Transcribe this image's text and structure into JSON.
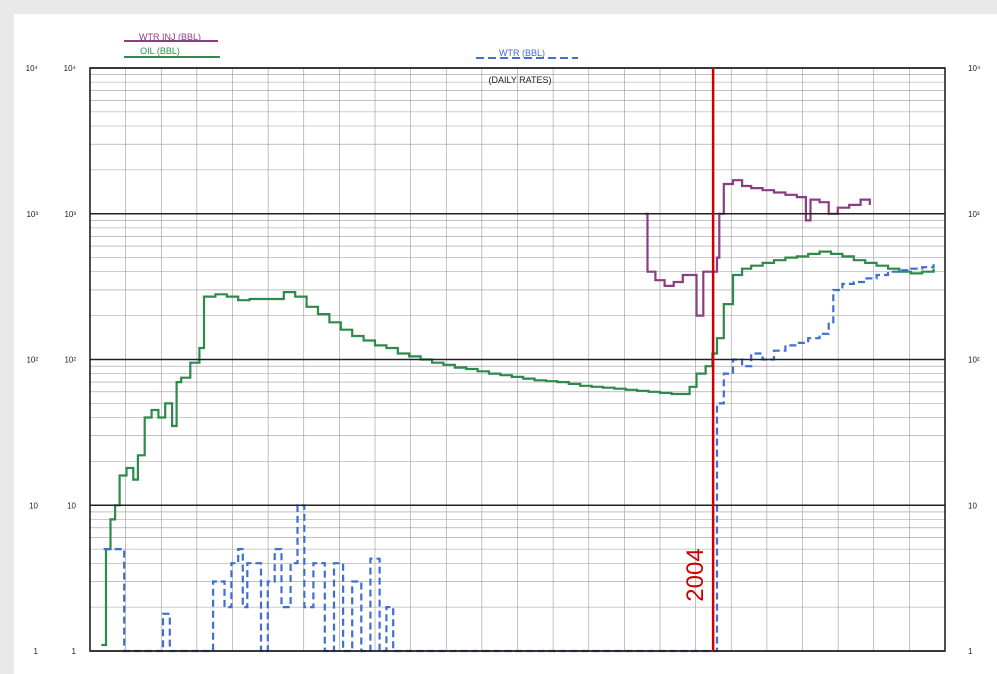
{
  "chart_data": {
    "type": "line",
    "title": "(DAILY RATES)",
    "y_scale": "log",
    "ylim": [
      1,
      10000
    ],
    "y_tick_labels": [
      "1",
      "10",
      "10²",
      "10³",
      "10⁴"
    ],
    "right_tick_labels": [
      "1",
      "10",
      "10²",
      "10³",
      "10⁴"
    ],
    "grid": true,
    "legend": [
      "WTR INJ (BBL)",
      "OIL (BBL)",
      "WTR (BBL)"
    ],
    "annotation": {
      "label": "2004",
      "x": 27.33
    },
    "x_range": [
      0,
      37.5
    ],
    "series": [
      {
        "name": "WTR INJ (BBL)",
        "color": "#8a3d80",
        "style": "solid",
        "points": [
          [
            24.35,
            1000
          ],
          [
            24.45,
            400
          ],
          [
            24.8,
            350
          ],
          [
            25.2,
            320
          ],
          [
            25.6,
            340
          ],
          [
            26.0,
            380
          ],
          [
            26.3,
            380
          ],
          [
            26.6,
            200
          ],
          [
            26.8,
            200
          ],
          [
            26.9,
            400
          ],
          [
            27.0,
            400
          ],
          [
            27.5,
            500
          ],
          [
            27.6,
            1000
          ],
          [
            27.8,
            1600
          ],
          [
            28.2,
            1700
          ],
          [
            28.6,
            1550
          ],
          [
            29.0,
            1500
          ],
          [
            29.5,
            1450
          ],
          [
            30.0,
            1400
          ],
          [
            30.5,
            1350
          ],
          [
            31.0,
            1300
          ],
          [
            31.4,
            900
          ],
          [
            31.6,
            1250
          ],
          [
            32.0,
            1200
          ],
          [
            32.4,
            1000
          ],
          [
            32.8,
            1100
          ],
          [
            33.3,
            1150
          ],
          [
            33.8,
            1250
          ],
          [
            34.2,
            1150
          ]
        ]
      },
      {
        "name": "OIL (BBL)",
        "color": "#2e8a4a",
        "style": "solid",
        "points": [
          [
            0.5,
            1.1
          ],
          [
            0.7,
            5
          ],
          [
            0.9,
            8
          ],
          [
            1.1,
            10
          ],
          [
            1.3,
            16
          ],
          [
            1.6,
            18
          ],
          [
            1.9,
            15
          ],
          [
            2.1,
            22
          ],
          [
            2.4,
            40
          ],
          [
            2.7,
            45
          ],
          [
            3.0,
            40
          ],
          [
            3.3,
            50
          ],
          [
            3.6,
            35
          ],
          [
            3.8,
            70
          ],
          [
            4.0,
            75
          ],
          [
            4.4,
            95
          ],
          [
            4.8,
            120
          ],
          [
            5.0,
            270
          ],
          [
            5.5,
            280
          ],
          [
            6.0,
            270
          ],
          [
            6.5,
            255
          ],
          [
            7.0,
            260
          ],
          [
            8.5,
            290
          ],
          [
            9.0,
            270
          ],
          [
            9.5,
            230
          ],
          [
            10.0,
            205
          ],
          [
            10.5,
            180
          ],
          [
            11.0,
            160
          ],
          [
            11.5,
            145
          ],
          [
            12.0,
            135
          ],
          [
            12.5,
            125
          ],
          [
            13.0,
            120
          ],
          [
            13.5,
            110
          ],
          [
            14.0,
            105
          ],
          [
            14.5,
            100
          ],
          [
            15.0,
            95
          ],
          [
            15.5,
            92
          ],
          [
            16.0,
            88
          ],
          [
            16.5,
            86
          ],
          [
            17.0,
            83
          ],
          [
            17.5,
            80
          ],
          [
            18.0,
            78
          ],
          [
            18.5,
            76
          ],
          [
            19.0,
            74
          ],
          [
            19.5,
            72
          ],
          [
            20.0,
            71
          ],
          [
            20.5,
            70
          ],
          [
            21.0,
            68
          ],
          [
            21.5,
            66
          ],
          [
            22.0,
            65
          ],
          [
            22.5,
            64
          ],
          [
            23.0,
            63
          ],
          [
            23.5,
            62
          ],
          [
            24.0,
            61
          ],
          [
            24.5,
            60
          ],
          [
            25.0,
            59
          ],
          [
            25.5,
            58
          ],
          [
            26.0,
            58
          ],
          [
            26.3,
            65
          ],
          [
            26.6,
            80
          ],
          [
            27.0,
            90
          ],
          [
            27.3,
            110
          ],
          [
            27.5,
            140
          ],
          [
            27.8,
            240
          ],
          [
            28.2,
            380
          ],
          [
            28.6,
            420
          ],
          [
            29.0,
            440
          ],
          [
            29.5,
            460
          ],
          [
            30.0,
            480
          ],
          [
            30.5,
            500
          ],
          [
            31.0,
            510
          ],
          [
            31.5,
            530
          ],
          [
            32.0,
            550
          ],
          [
            32.5,
            530
          ],
          [
            33.0,
            510
          ],
          [
            33.5,
            480
          ],
          [
            34.0,
            460
          ],
          [
            34.5,
            440
          ],
          [
            35.0,
            420
          ],
          [
            35.5,
            400
          ],
          [
            36.0,
            390
          ],
          [
            36.5,
            400
          ],
          [
            37.0,
            420
          ]
        ]
      },
      {
        "name": "WTR (BBL)",
        "color": "#3f6fd2",
        "style": "dashed",
        "points": [
          [
            0.6,
            5
          ],
          [
            1.5,
            1
          ],
          [
            2.9,
            1
          ],
          [
            3.2,
            1.8
          ],
          [
            3.5,
            1
          ],
          [
            4.8,
            1
          ],
          [
            5.4,
            3
          ],
          [
            5.9,
            2
          ],
          [
            6.2,
            4
          ],
          [
            6.5,
            5
          ],
          [
            6.7,
            2
          ],
          [
            6.9,
            4
          ],
          [
            7.5,
            1
          ],
          [
            7.8,
            3
          ],
          [
            8.1,
            5
          ],
          [
            8.4,
            2
          ],
          [
            8.8,
            4
          ],
          [
            9.1,
            10
          ],
          [
            9.4,
            2
          ],
          [
            9.8,
            4
          ],
          [
            10.3,
            1
          ],
          [
            10.7,
            4
          ],
          [
            11.1,
            1
          ],
          [
            11.5,
            3
          ],
          [
            11.9,
            1
          ],
          [
            12.3,
            4.3
          ],
          [
            12.7,
            1
          ],
          [
            13.0,
            2
          ],
          [
            13.3,
            1
          ],
          [
            27.5,
            50
          ],
          [
            27.8,
            80
          ],
          [
            28.2,
            100
          ],
          [
            28.6,
            90
          ],
          [
            29.0,
            110
          ],
          [
            29.5,
            100
          ],
          [
            30.0,
            115
          ],
          [
            30.5,
            125
          ],
          [
            31.0,
            130
          ],
          [
            31.5,
            140
          ],
          [
            32.0,
            150
          ],
          [
            32.4,
            180
          ],
          [
            32.6,
            300
          ],
          [
            33.0,
            330
          ],
          [
            33.5,
            340
          ],
          [
            34.0,
            360
          ],
          [
            34.5,
            380
          ],
          [
            35.0,
            400
          ],
          [
            35.5,
            410
          ],
          [
            36.0,
            420
          ],
          [
            36.5,
            430
          ],
          [
            37.0,
            450
          ]
        ]
      }
    ]
  }
}
